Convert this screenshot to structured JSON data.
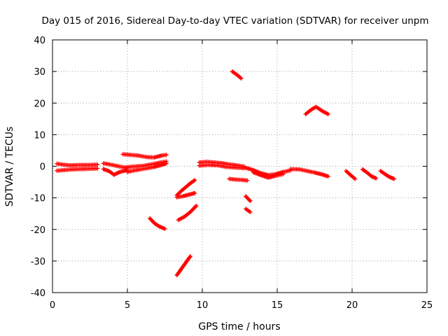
{
  "chart_data": {
    "type": "scatter",
    "title": "Day 015 of 2016, Sidereal Day-to-day VTEC variation (SDTVAR) for receiver unpm",
    "xlabel": "GPS time / hours",
    "ylabel": "SDTVAR / TECUs",
    "xlim": [
      0,
      25
    ],
    "ylim": [
      -40,
      40
    ],
    "xticks": [
      "0",
      "5",
      "10",
      "15",
      "20",
      "25"
    ],
    "yticks": [
      "-40",
      "-30",
      "-20",
      "-10",
      "0",
      "10",
      "20",
      "30",
      "40"
    ],
    "grid": true,
    "marker": "plus",
    "series_color": "#ff0000",
    "segments": [
      {
        "x": [
          0.3,
          0.7,
          1.2,
          1.8,
          2.4,
          3.0
        ],
        "y": [
          0.8,
          0.5,
          0.3,
          0.4,
          0.4,
          0.5
        ]
      },
      {
        "x": [
          0.3,
          0.8,
          1.3,
          1.9,
          2.5,
          3.0
        ],
        "y": [
          -1.4,
          -1.2,
          -1.0,
          -0.9,
          -0.8,
          -0.7
        ]
      },
      {
        "x": [
          3.4,
          3.7,
          4.0,
          4.3,
          4.6,
          5.0
        ],
        "y": [
          0.9,
          0.7,
          0.4,
          0.1,
          -0.2,
          -0.5
        ]
      },
      {
        "x": [
          3.4,
          3.8,
          4.1,
          4.5,
          5.0
        ],
        "y": [
          -0.9,
          -1.6,
          -2.7,
          -1.8,
          -1.2
        ]
      },
      {
        "x": [
          4.7,
          5.2,
          5.7,
          6.3,
          6.8,
          7.3,
          7.6
        ],
        "y": [
          3.8,
          3.6,
          3.4,
          2.9,
          2.8,
          3.4,
          3.6
        ]
      },
      {
        "x": [
          4.8,
          5.4,
          6.0,
          6.6,
          7.1,
          7.6
        ],
        "y": [
          -0.4,
          -0.1,
          0.1,
          0.6,
          1.1,
          1.5
        ]
      },
      {
        "x": [
          5.0,
          5.5,
          6.1,
          6.7,
          7.2,
          7.6
        ],
        "y": [
          -1.8,
          -1.3,
          -0.8,
          -0.3,
          0.3,
          0.9
        ]
      },
      {
        "x": [
          6.5,
          6.8,
          7.1,
          7.5
        ],
        "y": [
          -16.5,
          -18.0,
          -19.0,
          -19.8
        ]
      },
      {
        "x": [
          8.3,
          8.6,
          8.9,
          9.2,
          9.5
        ],
        "y": [
          -9.2,
          -7.8,
          -6.6,
          -5.4,
          -4.4
        ]
      },
      {
        "x": [
          8.3,
          8.7,
          9.1,
          9.5
        ],
        "y": [
          -9.8,
          -9.5,
          -9.0,
          -8.5
        ]
      },
      {
        "x": [
          8.4,
          8.8,
          9.2,
          9.6
        ],
        "y": [
          -17.0,
          -16.0,
          -14.5,
          -12.5
        ]
      },
      {
        "x": [
          8.3,
          8.6,
          8.9,
          9.2
        ],
        "y": [
          -34.5,
          -32.5,
          -30.5,
          -28.5
        ]
      },
      {
        "x": [
          9.8,
          10.3,
          10.8,
          11.3,
          11.8,
          12.3,
          12.8
        ],
        "y": [
          1.2,
          1.4,
          1.2,
          1.0,
          0.6,
          0.3,
          -0.1
        ]
      },
      {
        "x": [
          9.8,
          10.4,
          11.0,
          11.6,
          12.2,
          12.8
        ],
        "y": [
          0.2,
          0.4,
          0.3,
          -0.2,
          -0.4,
          -0.6
        ]
      },
      {
        "x": [
          11.8,
          12.2,
          12.6,
          13.0
        ],
        "y": [
          -4.0,
          -4.2,
          -4.3,
          -4.5
        ]
      },
      {
        "x": [
          12.0,
          12.3,
          12.6
        ],
        "y": [
          30.0,
          29.0,
          27.8
        ]
      },
      {
        "x": [
          12.9,
          13.2
        ],
        "y": [
          -9.5,
          -11.0
        ]
      },
      {
        "x": [
          12.9,
          13.2
        ],
        "y": [
          -13.5,
          -14.5
        ]
      },
      {
        "x": [
          12.9,
          13.4,
          13.9,
          14.4,
          14.9,
          15.4,
          15.9
        ],
        "y": [
          -0.5,
          -1.2,
          -2.2,
          -2.8,
          -2.5,
          -1.8,
          -1.3
        ]
      },
      {
        "x": [
          13.4,
          13.9,
          14.4,
          14.9,
          15.4
        ],
        "y": [
          -1.9,
          -2.8,
          -3.6,
          -3.0,
          -2.5
        ]
      },
      {
        "x": [
          15.9,
          16.5,
          17.0,
          17.5,
          18.0,
          18.4
        ],
        "y": [
          -0.9,
          -1.0,
          -1.5,
          -2.0,
          -2.6,
          -3.2
        ]
      },
      {
        "x": [
          16.9,
          17.3,
          17.6,
          18.0,
          18.4
        ],
        "y": [
          16.5,
          18.0,
          18.8,
          17.5,
          16.5
        ]
      },
      {
        "x": [
          19.6,
          19.9,
          20.2
        ],
        "y": [
          -1.5,
          -2.8,
          -4.0
        ]
      },
      {
        "x": [
          20.7,
          21.0,
          21.3,
          21.6
        ],
        "y": [
          -1.0,
          -2.0,
          -3.2,
          -3.8
        ]
      },
      {
        "x": [
          21.9,
          22.2,
          22.5,
          22.8
        ],
        "y": [
          -1.5,
          -2.5,
          -3.4,
          -4.0
        ]
      }
    ]
  }
}
